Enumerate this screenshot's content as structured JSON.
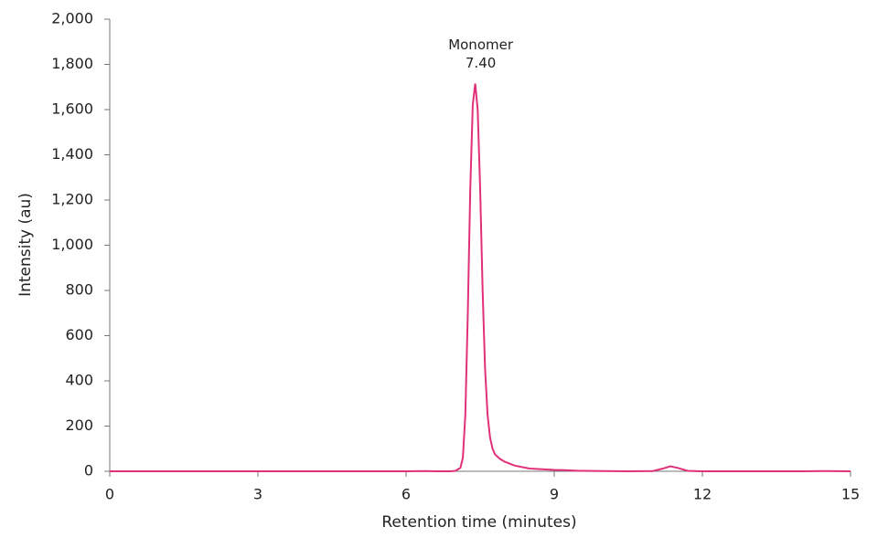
{
  "chart_data": {
    "type": "line",
    "x_label": "Retention time (minutes)",
    "y_label": "Intensity (au)",
    "xlim": [
      0,
      15
    ],
    "xticks": [
      0,
      3,
      6,
      9,
      12,
      15
    ],
    "ylim": [
      0,
      2000
    ],
    "yticks": [
      0,
      200,
      400,
      600,
      800,
      {
        "value": 1000,
        "label": "1,000"
      },
      {
        "value": 1200,
        "label": "1,200"
      },
      {
        "value": 1400,
        "label": "1,400"
      },
      {
        "value": 1600,
        "label": "1,600"
      },
      {
        "value": 1800,
        "label": "1,800"
      },
      {
        "value": 2000,
        "label": "2,000"
      }
    ],
    "grid": false,
    "x": [
      0,
      1,
      2,
      3,
      4,
      5,
      6,
      6.4,
      6.6,
      6.9,
      7.0,
      7.1,
      7.15,
      7.2,
      7.25,
      7.3,
      7.35,
      7.4,
      7.45,
      7.5,
      7.55,
      7.6,
      7.65,
      7.7,
      7.75,
      7.8,
      7.9,
      8.0,
      8.2,
      8.5,
      9.0,
      9.2,
      9.5,
      10,
      10.5,
      11,
      11.2,
      11.35,
      11.5,
      11.7,
      12,
      13,
      14,
      14.5,
      15
    ],
    "series": [
      {
        "color": "#e0307a",
        "values": [
          0,
          0,
          0,
          0,
          0,
          0,
          0,
          1,
          0,
          0,
          2,
          15,
          60,
          250,
          700,
          1250,
          1620,
          1715,
          1600,
          1250,
          800,
          450,
          250,
          150,
          100,
          75,
          55,
          42,
          25,
          12,
          6,
          5,
          2,
          1,
          0,
          1,
          12,
          22,
          15,
          2,
          0,
          0,
          0,
          1,
          0
        ]
      }
    ],
    "annotations": [
      {
        "text": "Monomer",
        "x": 7.4,
        "label": "7.40"
      }
    ]
  }
}
